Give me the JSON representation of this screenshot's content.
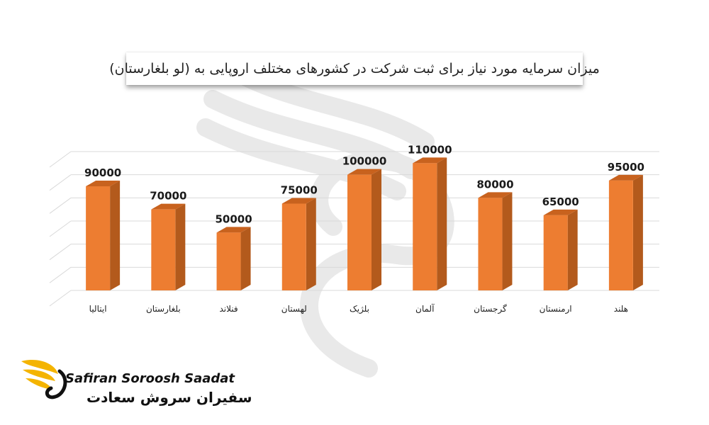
{
  "chart_data": {
    "type": "bar",
    "title": "میزان سرمایه مورد نیاز برای ثبت شرکت در کشورهای مختلف اروپایی به (لو بلغارستان)",
    "categories": [
      "ایتالیا",
      "بلغارستان",
      "فنلاند",
      "لهستان",
      "بلژیک",
      "آلمان",
      "گرجستان",
      "ارمنستان",
      "هلند"
    ],
    "values": [
      90000,
      70000,
      50000,
      75000,
      100000,
      110000,
      80000,
      65000,
      95000
    ],
    "data_labels": [
      "90000",
      "70000",
      "50000",
      "75000",
      "100000",
      "110000",
      "80000",
      "65000",
      "95000"
    ],
    "ylim": [
      0,
      120000
    ],
    "grid": true,
    "legend": "none",
    "bar_style": "3d",
    "colors": {
      "bar_front": "#ED7D31",
      "bar_side": "#B35A1C",
      "bar_top": "#C8621E",
      "grid": "#d9d9d9"
    }
  },
  "brand": {
    "latin": "Safiran Soroosh Saadat",
    "farsi": "سفیران سروش سعادت",
    "colors": {
      "wing": "#F4B400",
      "text": "#111111"
    }
  }
}
